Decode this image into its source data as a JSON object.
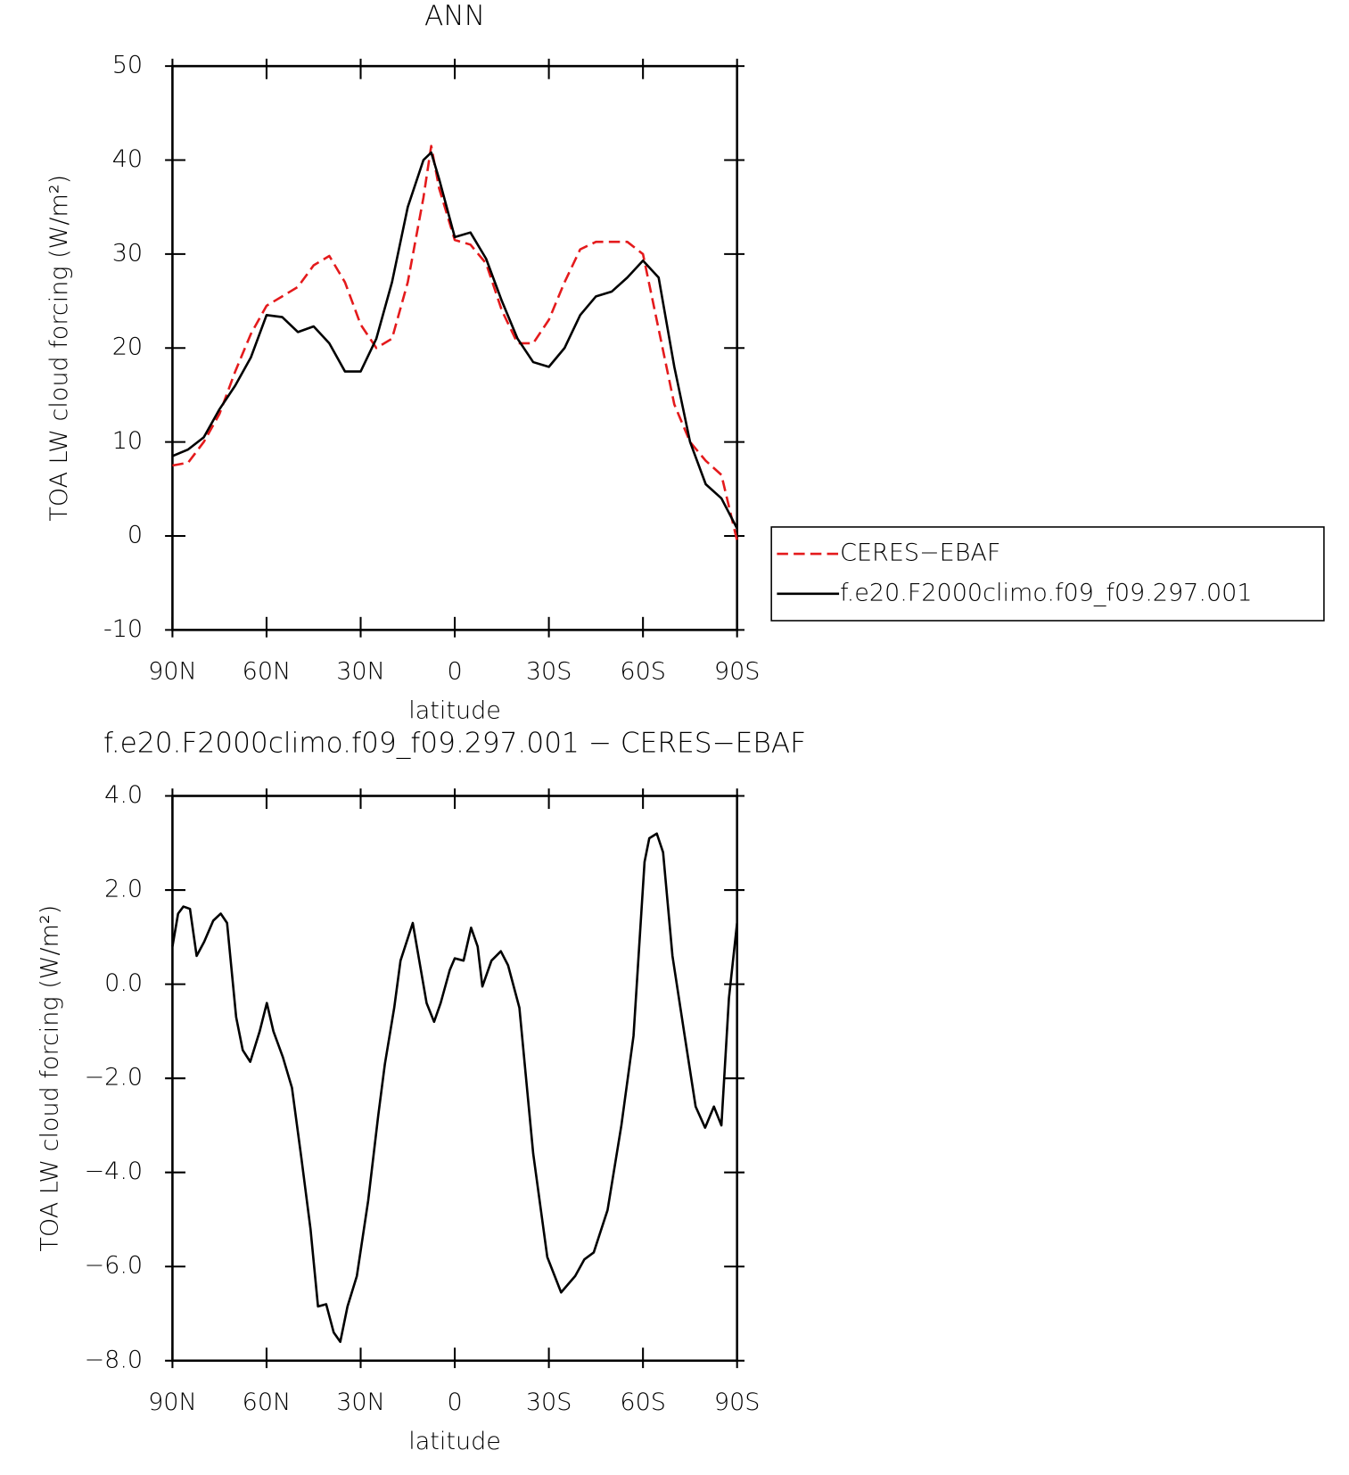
{
  "chart_data": [
    {
      "type": "line",
      "title": "ANN",
      "x_label": "latitude",
      "y_label": "TOA LW cloud forcing (W/m²)",
      "x": [
        90,
        85,
        80,
        75,
        70,
        65,
        60,
        55,
        50,
        45,
        40,
        35,
        30,
        25,
        20,
        15,
        10,
        7.5,
        5,
        0,
        -5,
        -10,
        -15,
        -20,
        -25,
        -30,
        -35,
        -40,
        -45,
        -50,
        -55,
        -60,
        -65,
        -70,
        -75,
        -80,
        -85,
        -90
      ],
      "series": [
        {
          "name": "CERES−EBAF",
          "color": "#e41a1c",
          "dash": true,
          "values": [
            7.5,
            7.8,
            10,
            13,
            17.5,
            21.5,
            24.5,
            25.5,
            26.5,
            28.8,
            29.8,
            27,
            22.5,
            20,
            21,
            27,
            36,
            41.5,
            37,
            31.5,
            31,
            29,
            24,
            20.5,
            20.5,
            23,
            27,
            30.5,
            31.3,
            31.3,
            31.3,
            30,
            22,
            14,
            10,
            8,
            6.5,
            -0.5
          ]
        },
        {
          "name": "f.e20.F2000climo.f09_f09.297.001",
          "color": "#000000",
          "dash": false,
          "values": [
            8.5,
            9.2,
            10.5,
            13.5,
            16,
            19,
            23.5,
            23.3,
            21.7,
            22.3,
            20.5,
            17.5,
            17.5,
            21,
            27,
            35,
            40,
            40.8,
            38,
            31.8,
            32.3,
            29.5,
            25,
            21,
            18.5,
            18,
            20,
            23.5,
            25.5,
            26,
            27.5,
            29.3,
            27.5,
            18,
            10,
            5.5,
            4,
            0.8
          ]
        }
      ],
      "xlim": [
        90,
        -90
      ],
      "xticks": [
        {
          "value": 90,
          "label": "90N"
        },
        {
          "value": 60,
          "label": "60N"
        },
        {
          "value": 30,
          "label": "30N"
        },
        0,
        {
          "value": -30,
          "label": "30S"
        },
        {
          "value": -60,
          "label": "60S"
        },
        {
          "value": -90,
          "label": "90S"
        }
      ],
      "ylim": [
        -10,
        50
      ],
      "yticks": [
        -10,
        0,
        10,
        20,
        30,
        40,
        50
      ],
      "legend": "right"
    },
    {
      "type": "line",
      "title": "f.e20.F2000climo.f09_f09.297.001 − CERES−EBAF",
      "x_label": "latitude",
      "y_label": "TOA LW cloud forcing (W/m²)",
      "x": [
        90,
        88.2,
        86.5,
        84.4,
        82.3,
        79.9,
        77,
        74.6,
        72.6,
        69.7,
        67.6,
        65.2,
        62.2,
        59.9,
        57.8,
        54.8,
        51.9,
        48.9,
        46,
        43.6,
        41,
        38.6,
        36.5,
        34.2,
        31.2,
        27.6,
        24.4,
        22.3,
        19.3,
        17.3,
        13.4,
        9,
        6.6,
        4.5,
        1.6,
        0,
        -2.8,
        -5.2,
        -7.3,
        -8.8,
        -11.7,
        -14.7,
        -17,
        -20.6,
        -25,
        -29.5,
        -33.9,
        -38.4,
        -41.3,
        -44.3,
        -48.7,
        -53.1,
        -57,
        -60.5,
        -62,
        -64.4,
        -66.4,
        -69.4,
        -73.3,
        -76.8,
        -79.8,
        -82.6,
        -85,
        -87.4,
        -90
      ],
      "series": [
        {
          "color": "#000000",
          "dash": false,
          "values": [
            0.8,
            1.5,
            1.65,
            1.6,
            0.6,
            0.9,
            1.35,
            1.5,
            1.3,
            -0.7,
            -1.4,
            -1.65,
            -1,
            -0.4,
            -1,
            -1.55,
            -2.2,
            -3.7,
            -5.2,
            -6.85,
            -6.8,
            -7.4,
            -7.6,
            -6.85,
            -6.2,
            -4.6,
            -2.8,
            -1.7,
            -0.5,
            0.5,
            1.3,
            -0.4,
            -0.8,
            -0.4,
            0.3,
            0.55,
            0.5,
            1.2,
            0.8,
            -0.05,
            0.5,
            0.7,
            0.4,
            -0.5,
            -3.6,
            -5.8,
            -6.55,
            -6.2,
            -5.85,
            -5.7,
            -4.8,
            -3,
            -1.1,
            2.6,
            3.1,
            3.2,
            2.8,
            0.6,
            -1.1,
            -2.6,
            -3.05,
            -2.6,
            -3,
            -0.3,
            1.3
          ]
        }
      ],
      "xlim": [
        90,
        -90
      ],
      "xticks": [
        {
          "value": 90,
          "label": "90N"
        },
        {
          "value": 60,
          "label": "60N"
        },
        {
          "value": 30,
          "label": "30N"
        },
        0,
        {
          "value": -30,
          "label": "30S"
        },
        {
          "value": -60,
          "label": "60S"
        },
        {
          "value": -90,
          "label": "90S"
        }
      ],
      "ylim": [
        -8,
        4
      ],
      "yticks": [
        {
          "value": -8,
          "label": "−8.0"
        },
        {
          "value": -6,
          "label": "−6.0"
        },
        {
          "value": -4,
          "label": "−4.0"
        },
        {
          "value": -2,
          "label": "−2.0"
        },
        {
          "value": 0,
          "label": "0.0"
        },
        {
          "value": 2,
          "label": "2.0"
        },
        {
          "value": 4,
          "label": "4.0"
        }
      ]
    }
  ]
}
